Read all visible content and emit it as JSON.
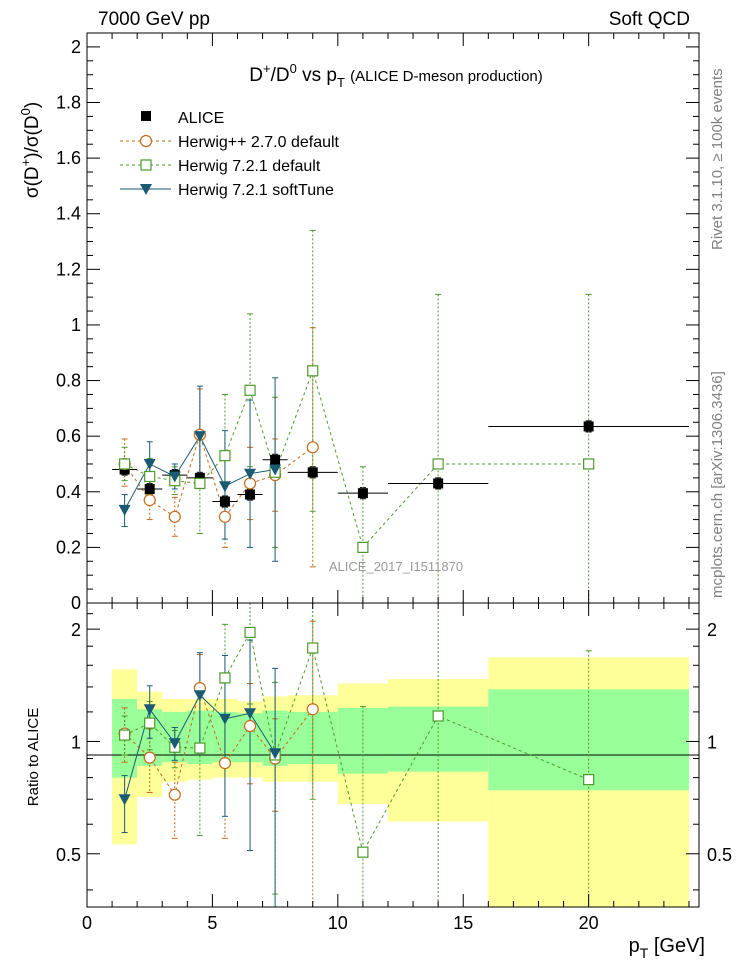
{
  "header": {
    "left": "7000 GeV pp",
    "right": "Soft QCD"
  },
  "side": {
    "rivet": "Rivet 3.1.10, ≥ 100k events",
    "mcplots": "mcplots.cern.ch [arXiv:1306.3436]"
  },
  "watermark": "ALICE_2017_I1511870",
  "chart_data": [
    {
      "type": "scatter",
      "panel": "main",
      "title_parts": [
        "D",
        "+",
        "/D",
        "0",
        " vs p",
        "T",
        "(ALICE D-meson production)"
      ],
      "ylabel_parts": [
        "σ(D",
        "+",
        ")/σ(D",
        "0",
        ")"
      ],
      "xlim": [
        0,
        24.4
      ],
      "ylim": [
        0,
        2.05
      ],
      "yticks": [
        0,
        0.2,
        0.4,
        0.6,
        0.8,
        1,
        1.2,
        1.4,
        1.6,
        1.8,
        2
      ],
      "ytick_labels": [
        "0",
        "0.2",
        "0.4",
        "0.6",
        "0.8",
        "1",
        "1.2",
        "1.4",
        "1.6",
        "1.8",
        "2"
      ],
      "legend": [
        "ALICE",
        "Herwig++ 2.7.0 default",
        "Herwig 7.2.1 default",
        "Herwig 7.2.1 softTune"
      ],
      "series": [
        {
          "name": "ALICE",
          "color": "#000000",
          "marker": "square-filled",
          "line": "none",
          "points": [
            {
              "x": 1.5,
              "y": 0.48,
              "lo": 0.46,
              "hi": 0.5,
              "xlo": 1,
              "xhi": 2
            },
            {
              "x": 2.5,
              "y": 0.41,
              "lo": 0.39,
              "hi": 0.43,
              "xlo": 2,
              "xhi": 3
            },
            {
              "x": 3.5,
              "y": 0.46,
              "lo": 0.44,
              "hi": 0.48,
              "xlo": 3,
              "xhi": 4
            },
            {
              "x": 4.5,
              "y": 0.45,
              "lo": 0.43,
              "hi": 0.47,
              "xlo": 4,
              "xhi": 5
            },
            {
              "x": 5.5,
              "y": 0.365,
              "lo": 0.345,
              "hi": 0.385,
              "xlo": 5,
              "xhi": 6
            },
            {
              "x": 6.5,
              "y": 0.39,
              "lo": 0.37,
              "hi": 0.41,
              "xlo": 6,
              "xhi": 7
            },
            {
              "x": 7.5,
              "y": 0.515,
              "lo": 0.495,
              "hi": 0.535,
              "xlo": 7,
              "xhi": 8
            },
            {
              "x": 9.0,
              "y": 0.47,
              "lo": 0.45,
              "hi": 0.49,
              "xlo": 8,
              "xhi": 10
            },
            {
              "x": 11.0,
              "y": 0.395,
              "lo": 0.375,
              "hi": 0.415,
              "xlo": 10,
              "xhi": 12
            },
            {
              "x": 14.0,
              "y": 0.43,
              "lo": 0.41,
              "hi": 0.45,
              "xlo": 12,
              "xhi": 16
            },
            {
              "x": 20.0,
              "y": 0.635,
              "lo": 0.615,
              "hi": 0.655,
              "xlo": 16,
              "xhi": 24
            }
          ]
        },
        {
          "name": "Herwig++ 2.7.0 default",
          "color": "#c46a1b",
          "marker": "circle-open",
          "line": "dashed",
          "points": [
            {
              "x": 1.5,
              "y": 0.5,
              "lo": 0.42,
              "hi": 0.59
            },
            {
              "x": 2.5,
              "y": 0.37,
              "lo": 0.3,
              "hi": 0.44
            },
            {
              "x": 3.5,
              "y": 0.31,
              "lo": 0.24,
              "hi": 0.38
            },
            {
              "x": 4.5,
              "y": 0.605,
              "lo": 0.43,
              "hi": 0.77
            },
            {
              "x": 5.5,
              "y": 0.31,
              "lo": 0.2,
              "hi": 0.42
            },
            {
              "x": 6.5,
              "y": 0.43,
              "lo": 0.3,
              "hi": 0.56
            },
            {
              "x": 7.5,
              "y": 0.46,
              "lo": 0.33,
              "hi": 0.59
            },
            {
              "x": 9.0,
              "y": 0.56,
              "lo": 0.13,
              "hi": 0.99
            }
          ]
        },
        {
          "name": "Herwig 7.2.1 default",
          "color": "#4c9a2a",
          "marker": "square-open",
          "line": "dashed",
          "points": [
            {
              "x": 1.5,
              "y": 0.5,
              "lo": 0.44,
              "hi": 0.56
            },
            {
              "x": 2.5,
              "y": 0.455,
              "lo": 0.39,
              "hi": 0.52
            },
            {
              "x": 3.5,
              "y": 0.44,
              "lo": 0.39,
              "hi": 0.49
            },
            {
              "x": 4.5,
              "y": 0.43,
              "lo": 0.25,
              "hi": 0.61
            },
            {
              "x": 5.5,
              "y": 0.53,
              "lo": 0.31,
              "hi": 0.75
            },
            {
              "x": 6.5,
              "y": 0.765,
              "lo": 0.49,
              "hi": 1.04
            },
            {
              "x": 7.5,
              "y": 0.47,
              "lo": 0.2,
              "hi": 0.74
            },
            {
              "x": 9.0,
              "y": 0.835,
              "lo": 0.33,
              "hi": 1.34
            },
            {
              "x": 11.0,
              "y": 0.2,
              "lo": 0.0,
              "hi": 0.49
            },
            {
              "x": 14.0,
              "y": 0.5,
              "lo": 0.0,
              "hi": 1.11
            },
            {
              "x": 20.0,
              "y": 0.5,
              "lo": 0.0,
              "hi": 1.11
            }
          ]
        },
        {
          "name": "Herwig 7.2.1 softTune",
          "color": "#1a5a73",
          "marker": "triangle-down-filled",
          "line": "solid",
          "points": [
            {
              "x": 1.5,
              "y": 0.335,
              "lo": 0.275,
              "hi": 0.39
            },
            {
              "x": 2.5,
              "y": 0.5,
              "lo": 0.42,
              "hi": 0.58
            },
            {
              "x": 3.5,
              "y": 0.455,
              "lo": 0.41,
              "hi": 0.5
            },
            {
              "x": 4.5,
              "y": 0.6,
              "lo": 0.42,
              "hi": 0.78
            },
            {
              "x": 5.5,
              "y": 0.42,
              "lo": 0.23,
              "hi": 0.62
            },
            {
              "x": 6.5,
              "y": 0.465,
              "lo": 0.2,
              "hi": 0.73
            },
            {
              "x": 7.5,
              "y": 0.48,
              "lo": 0.15,
              "hi": 0.81
            }
          ]
        }
      ]
    },
    {
      "type": "scatter",
      "panel": "ratio",
      "ylabel": "Ratio to ALICE",
      "xlabel_parts": [
        "p",
        "T",
        " [GeV]"
      ],
      "xlim": [
        0,
        24.4
      ],
      "ylim": [
        0.36,
        2.35
      ],
      "yscale": "log",
      "xticks": [
        0,
        5,
        10,
        15,
        20
      ],
      "xtick_labels": [
        "0",
        "5",
        "10",
        "15",
        "20"
      ],
      "yticks": [
        0.5,
        1,
        2
      ],
      "ytick_labels": [
        "0.5",
        "1",
        "2"
      ],
      "bands": [
        {
          "xlo": 1,
          "xhi": 2,
          "inner": [
            0.8,
            1.3
          ],
          "outer": [
            0.53,
            1.56
          ]
        },
        {
          "xlo": 2,
          "xhi": 3,
          "inner": [
            0.86,
            1.22
          ],
          "outer": [
            0.71,
            1.36
          ]
        },
        {
          "xlo": 3,
          "xhi": 4,
          "inner": [
            0.88,
            1.2
          ],
          "outer": [
            0.78,
            1.3
          ]
        },
        {
          "xlo": 4,
          "xhi": 5,
          "inner": [
            0.87,
            1.21
          ],
          "outer": [
            0.79,
            1.3
          ]
        },
        {
          "xlo": 5,
          "xhi": 6,
          "inner": [
            0.88,
            1.2
          ],
          "outer": [
            0.8,
            1.3
          ]
        },
        {
          "xlo": 6,
          "xhi": 7,
          "inner": [
            0.88,
            1.19
          ],
          "outer": [
            0.8,
            1.28
          ]
        },
        {
          "xlo": 7,
          "xhi": 8,
          "inner": [
            0.86,
            1.21
          ],
          "outer": [
            0.78,
            1.32
          ]
        },
        {
          "xlo": 8,
          "xhi": 10,
          "inner": [
            0.87,
            1.2
          ],
          "outer": [
            0.78,
            1.33
          ]
        },
        {
          "xlo": 10,
          "xhi": 12,
          "inner": [
            0.82,
            1.23
          ],
          "outer": [
            0.68,
            1.43
          ]
        },
        {
          "xlo": 12,
          "xhi": 16,
          "inner": [
            0.83,
            1.24
          ],
          "outer": [
            0.61,
            1.47
          ]
        },
        {
          "xlo": 16,
          "xhi": 24,
          "inner": [
            0.74,
            1.38
          ],
          "outer": [
            0.33,
            1.68
          ]
        }
      ],
      "series": [
        {
          "name": "Herwig++ 2.7.0 default",
          "color": "#c46a1b",
          "marker": "circle-open",
          "line": "dashed",
          "points": [
            {
              "x": 1.5,
              "y": 1.05,
              "lo": 0.88,
              "hi": 1.23
            },
            {
              "x": 2.5,
              "y": 0.905,
              "lo": 0.73,
              "hi": 1.08
            },
            {
              "x": 3.5,
              "y": 0.72,
              "lo": 0.55,
              "hi": 0.88
            },
            {
              "x": 4.5,
              "y": 1.39,
              "lo": 0.96,
              "hi": 1.71
            },
            {
              "x": 5.5,
              "y": 0.875,
              "lo": 0.55,
              "hi": 1.15
            },
            {
              "x": 6.5,
              "y": 1.1,
              "lo": 0.77,
              "hi": 1.43
            },
            {
              "x": 7.5,
              "y": 0.9,
              "lo": 0.65,
              "hi": 1.15
            },
            {
              "x": 9.0,
              "y": 1.22,
              "lo": 0.28,
              "hi": 2.1
            }
          ]
        },
        {
          "name": "Herwig 7.2.1 default",
          "color": "#4c9a2a",
          "marker": "square-open",
          "line": "dashed",
          "points": [
            {
              "x": 1.5,
              "y": 1.04,
              "lo": 0.92,
              "hi": 1.17
            },
            {
              "x": 2.5,
              "y": 1.12,
              "lo": 0.95,
              "hi": 1.28
            },
            {
              "x": 3.5,
              "y": 0.965,
              "lo": 0.85,
              "hi": 1.07
            },
            {
              "x": 4.5,
              "y": 0.96,
              "lo": 0.56,
              "hi": 1.36
            },
            {
              "x": 5.5,
              "y": 1.48,
              "lo": 0.86,
              "hi": 2.06
            },
            {
              "x": 6.5,
              "y": 1.96,
              "lo": 1.26,
              "hi": 2.67
            },
            {
              "x": 7.5,
              "y": 0.92,
              "lo": 0.39,
              "hi": 1.44
            },
            {
              "x": 9.0,
              "y": 1.78,
              "lo": 0.7,
              "hi": 2.85
            },
            {
              "x": 11.0,
              "y": 0.505,
              "lo": 0.0,
              "hi": 1.24
            },
            {
              "x": 14.0,
              "y": 1.17,
              "lo": 0.0,
              "hi": 2.58
            },
            {
              "x": 20.0,
              "y": 0.79,
              "lo": 0.0,
              "hi": 1.75
            }
          ]
        },
        {
          "name": "Herwig 7.2.1 softTune",
          "color": "#1a5a73",
          "marker": "triangle-down-filled",
          "line": "solid",
          "points": [
            {
              "x": 1.5,
              "y": 0.7,
              "lo": 0.57,
              "hi": 0.81
            },
            {
              "x": 2.5,
              "y": 1.22,
              "lo": 1.02,
              "hi": 1.41
            },
            {
              "x": 3.5,
              "y": 0.99,
              "lo": 0.89,
              "hi": 1.09
            },
            {
              "x": 4.5,
              "y": 1.33,
              "lo": 0.93,
              "hi": 1.73
            },
            {
              "x": 5.5,
              "y": 1.15,
              "lo": 0.63,
              "hi": 1.7
            },
            {
              "x": 6.5,
              "y": 1.19,
              "lo": 0.51,
              "hi": 1.87
            },
            {
              "x": 7.5,
              "y": 0.93,
              "lo": 0.29,
              "hi": 1.57
            }
          ]
        }
      ]
    }
  ]
}
